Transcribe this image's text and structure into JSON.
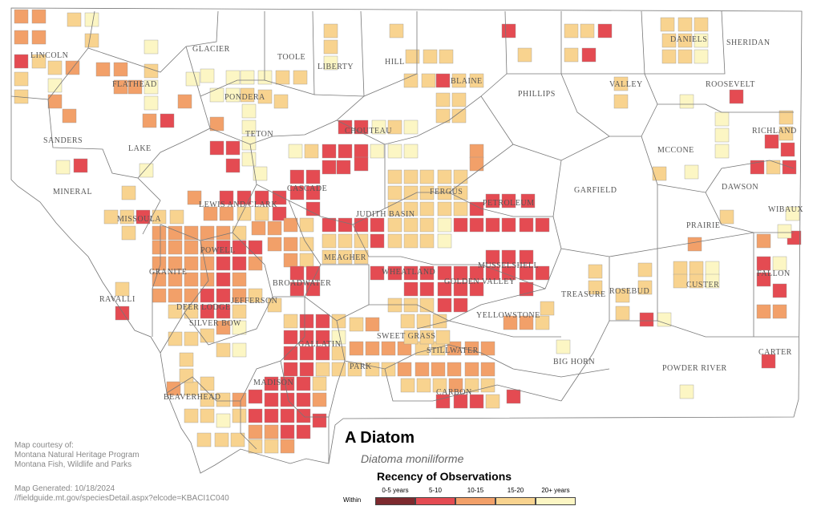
{
  "map": {
    "title": "A Diatom",
    "scientific_name": "Diatoma moniliforme",
    "colors": {
      "background": "#ffffff",
      "boundary": "#777777",
      "c0_5": "#7d2a2e",
      "c5_10": "#e44b52",
      "c10_15": "#f2a069",
      "c15_20": "#f8d38f",
      "c20plus": "#fcf6c4"
    },
    "counties": [
      "LINCOLN",
      "FLATHEAD",
      "GLACIER",
      "TOOLE",
      "LIBERTY",
      "HILL",
      "BLAINE",
      "PHILLIPS",
      "VALLEY",
      "DANIELS",
      "SHERIDAN",
      "ROOSEVELT",
      "SANDERS",
      "LAKE",
      "PONDERA",
      "TETON",
      "CHOUTEAU",
      "RICHLAND",
      "MCCONE",
      "MINERAL",
      "CASCADE",
      "FERGUS",
      "GARFIELD",
      "DAWSON",
      "LEWIS AND CLARK",
      "PETROLEUM",
      "MISSOULA",
      "JUDITH BASIN",
      "WIBAUX",
      "PRAIRIE",
      "POWELL",
      "MEAGHER",
      "WHEATLAND",
      "MUSSELSHELL",
      "GOLDEN VALLEY",
      "GRANITE",
      "BROADWATER",
      "FALLON",
      "CUSTER",
      "RAVALLI",
      "DEER LODGE",
      "JEFFERSON",
      "TREASURE",
      "ROSEBUD",
      "SILVER BOW",
      "YELLOWSTONE",
      "SWEET GRASS",
      "GALLATIN",
      "STILLWATER",
      "CARTER",
      "PARK",
      "BIG HORN",
      "POWDER RIVER",
      "MADISON",
      "BEAVERHEAD",
      "CARBON"
    ]
  },
  "legend": {
    "title": "Recency of Observations",
    "within_label": "Within",
    "categories": [
      {
        "label": "0-5 years",
        "color": "#7d2a2e"
      },
      {
        "label": "5-10",
        "color": "#e44b52"
      },
      {
        "label": "10-15",
        "color": "#f2a069"
      },
      {
        "label": "15-20",
        "color": "#f8d38f"
      },
      {
        "label": "20+ years",
        "color": "#fcf6c4"
      }
    ]
  },
  "credits": {
    "line1": "Map courtesy of:",
    "line2": "Montana Natural Heritage Program",
    "line3": "Montana Fish, Wildlife and Parks",
    "generated": "Map Generated: 10/18/2024",
    "url": "//fieldguide.mt.gov/speciesDetail.aspx?elcode=KBACI1C040"
  }
}
